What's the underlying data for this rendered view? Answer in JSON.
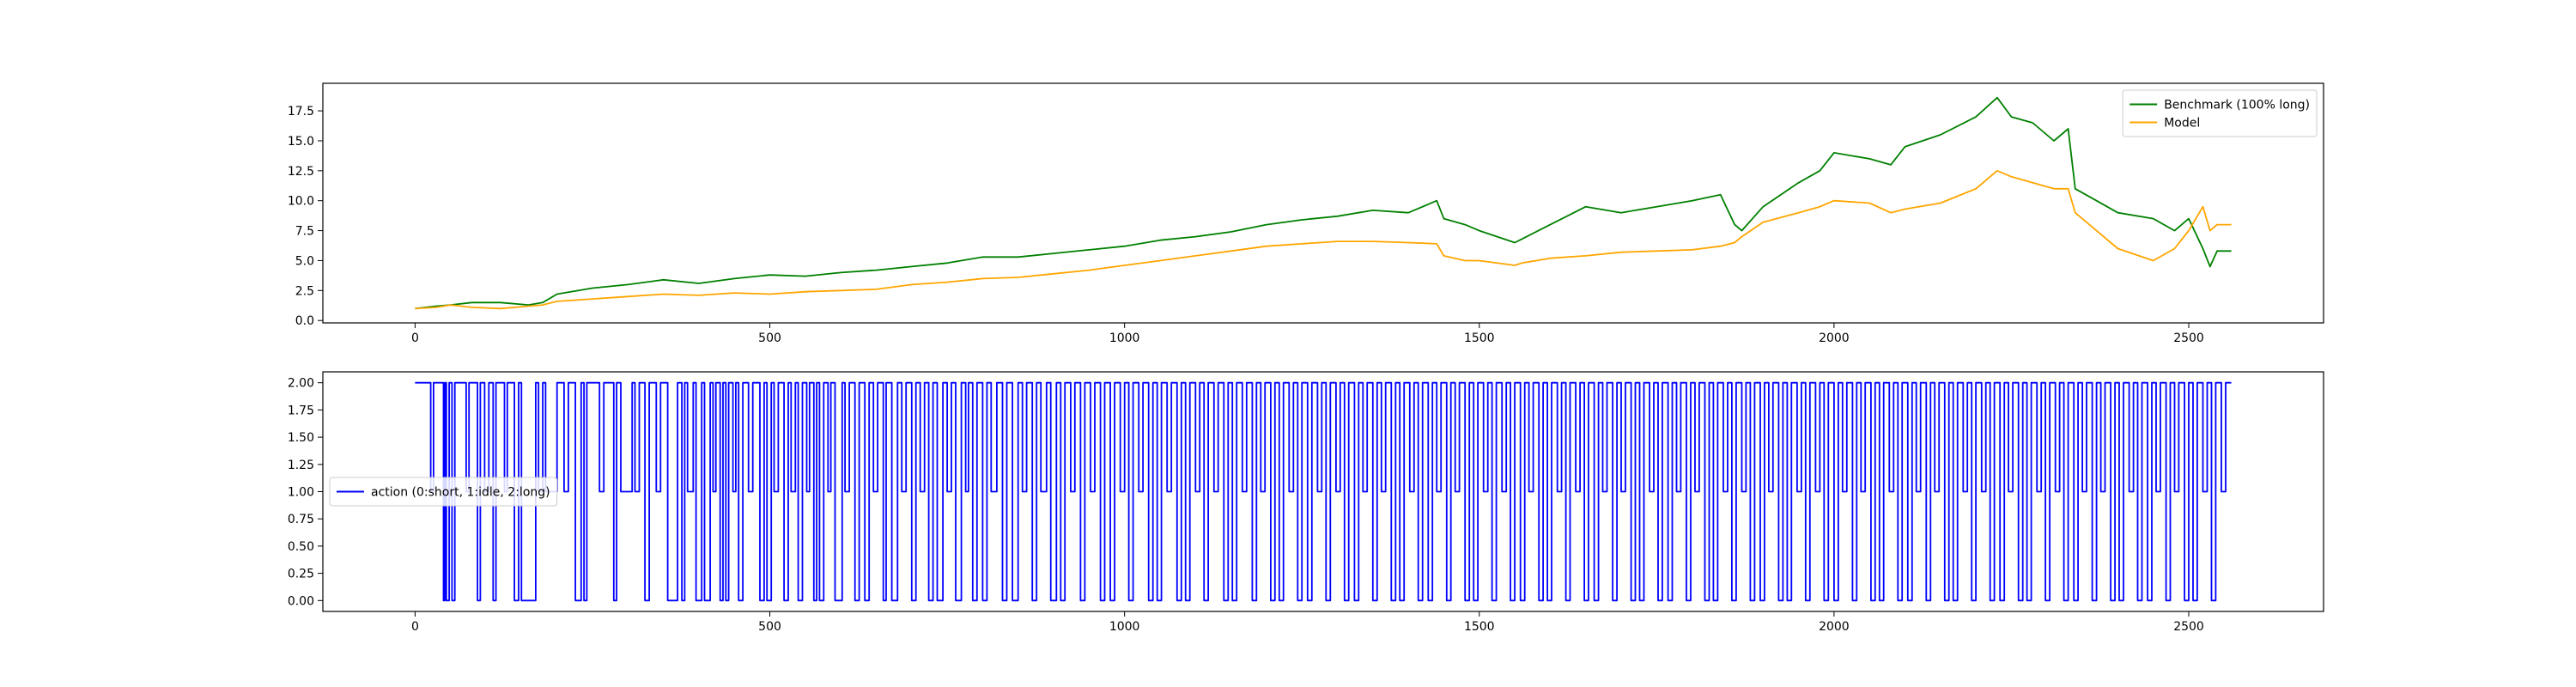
{
  "chart_data": [
    {
      "type": "line",
      "title": "",
      "xlabel": "",
      "ylabel": "",
      "xlim": [
        -130,
        2690
      ],
      "ylim": [
        -0.2,
        19.8
      ],
      "xticks": [
        0,
        500,
        1000,
        1500,
        2000,
        2500
      ],
      "xtick_labels": [
        "0",
        "500",
        "1000",
        "1500",
        "2000",
        "2500"
      ],
      "yticks": [
        0,
        2.5,
        5,
        7.5,
        10,
        12.5,
        15,
        17.5
      ],
      "ytick_labels": [
        "0.0",
        "2.5",
        "5.0",
        "7.5",
        "10.0",
        "12.5",
        "15.0",
        "17.5"
      ],
      "grid": false,
      "legend_position": "top-right",
      "series": [
        {
          "name": "Benchmark (100% long)",
          "color": "#008000",
          "x": [
            0,
            30,
            50,
            80,
            120,
            160,
            180,
            200,
            250,
            300,
            350,
            400,
            450,
            500,
            550,
            600,
            650,
            700,
            750,
            800,
            850,
            900,
            950,
            1000,
            1050,
            1100,
            1150,
            1200,
            1250,
            1300,
            1350,
            1400,
            1440,
            1450,
            1480,
            1500,
            1550,
            1560,
            1600,
            1650,
            1700,
            1750,
            1800,
            1840,
            1860,
            1870,
            1900,
            1950,
            1980,
            2000,
            2050,
            2080,
            2100,
            2150,
            2200,
            2230,
            2250,
            2280,
            2310,
            2330,
            2340,
            2370,
            2400,
            2450,
            2480,
            2500,
            2520,
            2530,
            2540,
            2560
          ],
          "y": [
            1.0,
            1.2,
            1.3,
            1.5,
            1.5,
            1.3,
            1.5,
            2.2,
            2.7,
            3.0,
            3.4,
            3.1,
            3.5,
            3.8,
            3.7,
            4.0,
            4.2,
            4.5,
            4.8,
            5.3,
            5.3,
            5.6,
            5.9,
            6.2,
            6.7,
            7.0,
            7.4,
            8.0,
            8.4,
            8.7,
            9.2,
            9.0,
            10.0,
            8.5,
            8.0,
            7.5,
            6.5,
            6.8,
            8.0,
            9.5,
            9.0,
            9.5,
            10.0,
            10.5,
            8.0,
            7.5,
            9.5,
            11.5,
            12.5,
            14.0,
            13.5,
            13.0,
            14.5,
            15.5,
            17.0,
            18.6,
            17.0,
            16.5,
            15.0,
            16.0,
            11.0,
            10.0,
            9.0,
            8.5,
            7.5,
            8.5,
            6.0,
            4.5,
            5.8,
            5.8
          ]
        },
        {
          "name": "Model",
          "color": "#FFA500",
          "x": [
            0,
            30,
            50,
            80,
            120,
            160,
            180,
            200,
            250,
            300,
            350,
            400,
            450,
            500,
            550,
            600,
            650,
            700,
            750,
            800,
            850,
            900,
            950,
            1000,
            1050,
            1100,
            1150,
            1200,
            1250,
            1300,
            1350,
            1400,
            1440,
            1450,
            1480,
            1500,
            1550,
            1560,
            1600,
            1650,
            1700,
            1750,
            1800,
            1840,
            1860,
            1870,
            1900,
            1950,
            1980,
            2000,
            2050,
            2080,
            2100,
            2150,
            2200,
            2230,
            2250,
            2280,
            2310,
            2330,
            2340,
            2370,
            2400,
            2450,
            2480,
            2500,
            2520,
            2530,
            2540,
            2560
          ],
          "y": [
            1.0,
            1.1,
            1.3,
            1.1,
            1.0,
            1.2,
            1.3,
            1.6,
            1.8,
            2.0,
            2.2,
            2.1,
            2.3,
            2.2,
            2.4,
            2.5,
            2.6,
            3.0,
            3.2,
            3.5,
            3.6,
            3.9,
            4.2,
            4.6,
            5.0,
            5.4,
            5.8,
            6.2,
            6.4,
            6.6,
            6.6,
            6.5,
            6.4,
            5.4,
            5.0,
            5.0,
            4.6,
            4.8,
            5.2,
            5.4,
            5.7,
            5.8,
            5.9,
            6.2,
            6.5,
            7.0,
            8.2,
            9.0,
            9.5,
            10.0,
            9.8,
            9.0,
            9.3,
            9.8,
            11.0,
            12.5,
            12.0,
            11.5,
            11.0,
            11.0,
            9.0,
            7.5,
            6.0,
            5.0,
            6.0,
            7.5,
            9.5,
            7.5,
            8.0,
            8.0
          ]
        }
      ]
    },
    {
      "type": "line",
      "title": "",
      "xlabel": "",
      "ylabel": "",
      "xlim": [
        -130,
        2690
      ],
      "ylim": [
        -0.1,
        2.1
      ],
      "xticks": [
        0,
        500,
        1000,
        1500,
        2000,
        2500
      ],
      "xtick_labels": [
        "0",
        "500",
        "1000",
        "1500",
        "2000",
        "2500"
      ],
      "yticks": [
        0,
        0.25,
        0.5,
        0.75,
        1.0,
        1.25,
        1.5,
        1.75,
        2.0
      ],
      "ytick_labels": [
        "0.00",
        "0.25",
        "0.50",
        "0.75",
        "1.00",
        "1.25",
        "1.50",
        "1.75",
        "2.00"
      ],
      "grid": false,
      "legend_position": "center-left",
      "series": [
        {
          "name": "action (0:short, 1:idle, 2:long)",
          "color": "#0000FF",
          "step": true,
          "x": [
            0,
            22,
            26,
            40,
            42,
            44,
            48,
            52,
            56,
            72,
            76,
            88,
            92,
            98,
            104,
            110,
            114,
            126,
            130,
            140,
            146,
            150,
            152,
            170,
            174,
            180,
            184,
            186,
            200,
            210,
            216,
            226,
            234,
            238,
            242,
            260,
            266,
            280,
            284,
            290,
            306,
            310,
            316,
            324,
            330,
            340,
            346,
            356,
            370,
            376,
            380,
            384,
            392,
            396,
            404,
            408,
            416,
            420,
            424,
            430,
            434,
            438,
            442,
            448,
            452,
            456,
            462,
            470,
            476,
            486,
            492,
            496,
            502,
            506,
            512,
            520,
            526,
            530,
            536,
            540,
            546,
            552,
            556,
            562,
            566,
            570,
            576,
            582,
            586,
            592,
            602,
            606,
            612,
            620,
            626,
            634,
            640,
            646,
            652,
            660,
            664,
            672,
            680,
            686,
            692,
            700,
            706,
            712,
            718,
            724,
            730,
            736,
            744,
            750,
            756,
            762,
            770,
            776,
            780,
            786,
            792,
            800,
            806,
            812,
            820,
            828,
            834,
            842,
            850,
            856,
            862,
            870,
            876,
            882,
            890,
            896,
            904,
            910,
            916,
            924,
            930,
            938,
            944,
            952,
            958,
            966,
            972,
            980,
            986,
            994,
            1000,
            1006,
            1012,
            1020,
            1026,
            1034,
            1040,
            1046,
            1052,
            1060,
            1066,
            1074,
            1080,
            1086,
            1092,
            1100,
            1106,
            1112,
            1118,
            1126,
            1132,
            1140,
            1146,
            1152,
            1158,
            1166,
            1172,
            1180,
            1186,
            1192,
            1198,
            1206,
            1212,
            1218,
            1224,
            1232,
            1238,
            1244,
            1250,
            1258,
            1264,
            1272,
            1278,
            1284,
            1290,
            1298,
            1304,
            1310,
            1316,
            1324,
            1330,
            1336,
            1342,
            1350,
            1356,
            1362,
            1368,
            1376,
            1382,
            1388,
            1394,
            1402,
            1408,
            1414,
            1420,
            1428,
            1434,
            1440,
            1446,
            1454,
            1460,
            1466,
            1472,
            1480,
            1486,
            1492,
            1498,
            1506,
            1512,
            1518,
            1524,
            1532,
            1538,
            1544,
            1550,
            1558,
            1564,
            1570,
            1576,
            1584,
            1590,
            1596,
            1602,
            1610,
            1616,
            1622,
            1628,
            1636,
            1642,
            1648,
            1654,
            1662,
            1668,
            1674,
            1680,
            1688,
            1694,
            1700,
            1706,
            1714,
            1720,
            1726,
            1732,
            1740,
            1746,
            1752,
            1758,
            1766,
            1772,
            1778,
            1784,
            1792,
            1798,
            1804,
            1810,
            1818,
            1824,
            1830,
            1836,
            1844,
            1850,
            1856,
            1862,
            1870,
            1876,
            1882,
            1888,
            1896,
            1902,
            1908,
            1914,
            1922,
            1928,
            1934,
            1940,
            1948,
            1954,
            1960,
            1966,
            1974,
            1980,
            1986,
            1992,
            2000,
            2006,
            2012,
            2018,
            2026,
            2032,
            2038,
            2044,
            2052,
            2058,
            2064,
            2070,
            2078,
            2084,
            2090,
            2096,
            2104,
            2110,
            2116,
            2122,
            2130,
            2136,
            2142,
            2148,
            2156,
            2162,
            2168,
            2174,
            2182,
            2188,
            2194,
            2200,
            2208,
            2214,
            2220,
            2226,
            2234,
            2240,
            2246,
            2252,
            2260,
            2266,
            2272,
            2278,
            2286,
            2292,
            2298,
            2304,
            2312,
            2318,
            2324,
            2330,
            2338,
            2344,
            2350,
            2356,
            2364,
            2370,
            2376,
            2382,
            2390,
            2396,
            2402,
            2408,
            2416,
            2422,
            2428,
            2434,
            2442,
            2448,
            2454,
            2460,
            2468,
            2474,
            2480,
            2486,
            2494,
            2500,
            2506,
            2512,
            2520,
            2526,
            2532,
            2538,
            2546,
            2552,
            2560
          ],
          "y": [
            2,
            1,
            2,
            0,
            2,
            0,
            2,
            0,
            2,
            1,
            2,
            0,
            2,
            1,
            2,
            0,
            2,
            1,
            2,
            0,
            2,
            0,
            0,
            2,
            1,
            2,
            1,
            1,
            2,
            1,
            2,
            0,
            2,
            0,
            2,
            1,
            2,
            0,
            2,
            1,
            2,
            1,
            2,
            0,
            2,
            1,
            2,
            0,
            2,
            0,
            2,
            1,
            2,
            0,
            2,
            0,
            2,
            1,
            2,
            0,
            2,
            0,
            2,
            1,
            2,
            0,
            2,
            1,
            2,
            0,
            2,
            0,
            2,
            1,
            2,
            0,
            2,
            1,
            2,
            0,
            2,
            1,
            2,
            0,
            2,
            0,
            2,
            1,
            2,
            0,
            2,
            1,
            2,
            0,
            2,
            0,
            2,
            1,
            2,
            0,
            2,
            0,
            2,
            1,
            2,
            0,
            2,
            1,
            2,
            0,
            2,
            0,
            2,
            1,
            2,
            0,
            2,
            1,
            2,
            0,
            2,
            0,
            2,
            1,
            2,
            0,
            2,
            0,
            2,
            1,
            2,
            0,
            2,
            1,
            2,
            0,
            2,
            0,
            2,
            1,
            2,
            0,
            2,
            1,
            2,
            0,
            2,
            0,
            2,
            1,
            2,
            0,
            2,
            1,
            2,
            0,
            2,
            0,
            2,
            1,
            2,
            0,
            2,
            0,
            2,
            1,
            2,
            0,
            2,
            1,
            2,
            0,
            2,
            0,
            2,
            1,
            2,
            0,
            2,
            1,
            2,
            0,
            2,
            0,
            2,
            1,
            2,
            0,
            2,
            0,
            2,
            1,
            2,
            0,
            2,
            1,
            2,
            0,
            2,
            0,
            2,
            1,
            2,
            0,
            2,
            1,
            2,
            0,
            2,
            0,
            2,
            1,
            2,
            0,
            2,
            0,
            2,
            1,
            2,
            0,
            2,
            1,
            2,
            0,
            2,
            0,
            2,
            1,
            2,
            0,
            2,
            1,
            2,
            0,
            2,
            0,
            2,
            1,
            2,
            0,
            2,
            0,
            2,
            1,
            2,
            0,
            2,
            1,
            2,
            0,
            2,
            0,
            2,
            1,
            2,
            0,
            2,
            1,
            2,
            0,
            2,
            0,
            2,
            1,
            2,
            0,
            2,
            0,
            2,
            1,
            2,
            0,
            2,
            1,
            2,
            0,
            2,
            0,
            2,
            1,
            2,
            0,
            2,
            1,
            2,
            0,
            2,
            0,
            2,
            1,
            2,
            0,
            2,
            0,
            2,
            1,
            2,
            0,
            2,
            1,
            2,
            0,
            2,
            0,
            2,
            1,
            2,
            0,
            2,
            1,
            2,
            0,
            2,
            0,
            2,
            1,
            2,
            0,
            2,
            0,
            2,
            1,
            2,
            0,
            2,
            1,
            2,
            0,
            2,
            0,
            2,
            1,
            2,
            0,
            2,
            1,
            2,
            0,
            2,
            0,
            2,
            1,
            2,
            0,
            2,
            0,
            2,
            1,
            2,
            0,
            2,
            1,
            2,
            0,
            2,
            0,
            2,
            1,
            2,
            0,
            2,
            1,
            2,
            0,
            2,
            0,
            2,
            1,
            2,
            0,
            2,
            0,
            2,
            1,
            2,
            0,
            2,
            1,
            2,
            0,
            2,
            0,
            2,
            1,
            2,
            0,
            2,
            1,
            2,
            2
          ]
        }
      ]
    }
  ]
}
